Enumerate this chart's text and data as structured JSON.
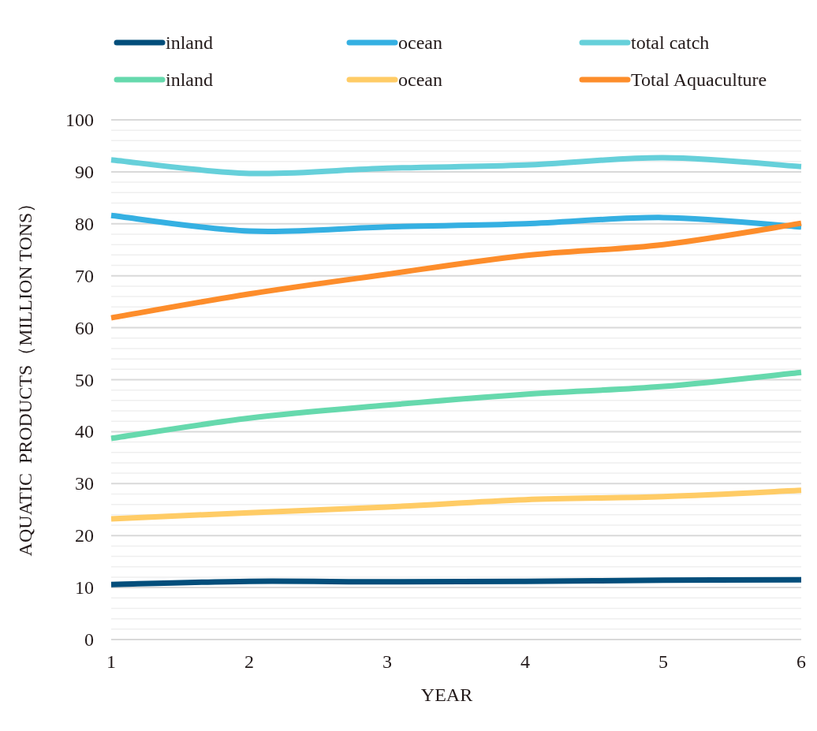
{
  "chart_data": {
    "type": "line",
    "xlabel": "YEAR",
    "ylabel": "AQUATIC  PRODUCTS（MILLION TONS）",
    "x": [
      1,
      2,
      3,
      4,
      5,
      6
    ],
    "xlim": [
      1,
      6
    ],
    "xticks": [
      1,
      2,
      3,
      4,
      5,
      6
    ],
    "ylim": [
      0,
      100
    ],
    "yticks": [
      0,
      {
        "value": 2,
        "label": null
      },
      {
        "value": 4,
        "label": null
      },
      {
        "value": 6,
        "label": null
      },
      {
        "value": 8,
        "label": null
      },
      10,
      {
        "value": 12,
        "label": null
      },
      {
        "value": 14,
        "label": null
      },
      {
        "value": 16,
        "label": null
      },
      {
        "value": 18,
        "label": null
      },
      20,
      {
        "value": 22,
        "label": null
      },
      {
        "value": 24,
        "label": null
      },
      {
        "value": 26,
        "label": null
      },
      {
        "value": 28,
        "label": null
      },
      30,
      {
        "value": 32,
        "label": null
      },
      {
        "value": 34,
        "label": null
      },
      {
        "value": 36,
        "label": null
      },
      {
        "value": 38,
        "label": null
      },
      40,
      {
        "value": 42,
        "label": null
      },
      {
        "value": 44,
        "label": null
      },
      {
        "value": 46,
        "label": null
      },
      {
        "value": 48,
        "label": null
      },
      50,
      {
        "value": 52,
        "label": null
      },
      {
        "value": 54,
        "label": null
      },
      {
        "value": 56,
        "label": null
      },
      {
        "value": 58,
        "label": null
      },
      60,
      {
        "value": 62,
        "label": null
      },
      {
        "value": 64,
        "label": null
      },
      {
        "value": 66,
        "label": null
      },
      {
        "value": 68,
        "label": null
      },
      70,
      {
        "value": 72,
        "label": null
      },
      {
        "value": 74,
        "label": null
      },
      {
        "value": 76,
        "label": null
      },
      {
        "value": 78,
        "label": null
      },
      80,
      {
        "value": 82,
        "label": null
      },
      {
        "value": 84,
        "label": null
      },
      {
        "value": 86,
        "label": null
      },
      {
        "value": 88,
        "label": null
      },
      90,
      {
        "value": 92,
        "label": null
      },
      {
        "value": 94,
        "label": null
      },
      {
        "value": 96,
        "label": null
      },
      {
        "value": 98,
        "label": null
      },
      100
    ],
    "grid": "y",
    "legend": "top",
    "marker": "none",
    "line_style": "solid",
    "series": [
      {
        "name": "inland",
        "color": "#034e7b",
        "values": [
          10.6,
          11.2,
          11.1,
          11.2,
          11.4,
          11.5
        ]
      },
      {
        "name": "ocean",
        "color": "#35b0e2",
        "values": [
          81.6,
          78.6,
          79.4,
          80.0,
          81.2,
          79.4
        ]
      },
      {
        "name": "total catch",
        "color": "#66d0da",
        "values": [
          92.3,
          89.7,
          90.7,
          91.3,
          92.7,
          91.0
        ]
      },
      {
        "name": "inland",
        "color": "#66d9ad",
        "values": [
          38.7,
          42.6,
          45.1,
          47.2,
          48.7,
          51.4
        ]
      },
      {
        "name": "ocean",
        "color": "#ffcc66",
        "values": [
          23.2,
          24.4,
          25.5,
          26.9,
          27.5,
          28.7
        ]
      },
      {
        "name": "Total Aquaculture",
        "color": "#fd8d2b",
        "values": [
          61.9,
          66.5,
          70.3,
          73.9,
          76.0,
          80.1
        ]
      }
    ]
  }
}
